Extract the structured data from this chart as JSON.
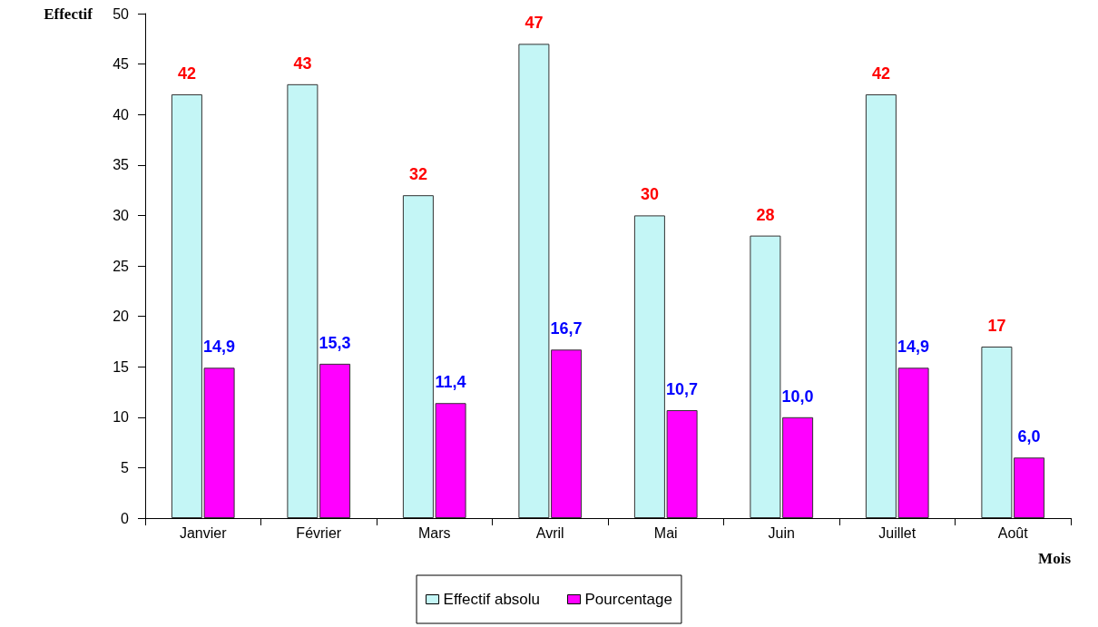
{
  "chart_data": {
    "type": "bar",
    "xlabel": "Mois",
    "ylabel": "Effectif",
    "categories": [
      "Janvier",
      "Février",
      "Mars",
      "Avril",
      "Mai",
      "Juin",
      "Juillet",
      "Août"
    ],
    "series": [
      {
        "name": "Effectif absolu",
        "color": "#c4f6f6",
        "values": [
          42,
          43,
          32,
          47,
          30,
          28,
          42,
          17
        ],
        "value_labels": [
          "42",
          "43",
          "32",
          "47",
          "30",
          "28",
          "42",
          "17"
        ]
      },
      {
        "name": "Pourcentage",
        "color": "#ff00ff",
        "values": [
          14.9,
          15.3,
          11.4,
          16.7,
          10.7,
          10.0,
          14.9,
          6.0
        ],
        "value_labels": [
          "14,9",
          "15,3",
          "11,4",
          "16,7",
          "10,7",
          "10,0",
          "14,9",
          "6,0"
        ]
      }
    ],
    "ylim": [
      0,
      50
    ],
    "yticks": [
      0,
      5,
      10,
      15,
      20,
      25,
      30,
      35,
      40,
      45,
      50
    ],
    "grid": false,
    "legend": "bottom"
  }
}
